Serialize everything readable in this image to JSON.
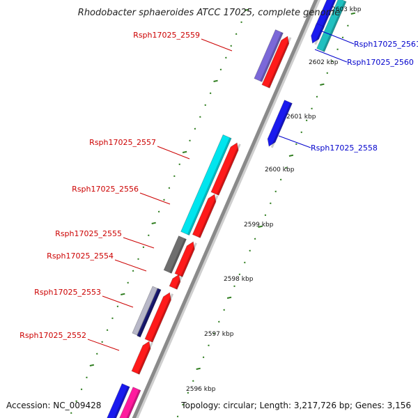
{
  "title": "Rhodobacter sphaeroides ATCC 17025, complete genome",
  "footer": {
    "accession": "Accession: NC_009428",
    "summary": "Topology: circular; Length: 3,217,726 bp; Genes: 3,156"
  },
  "colors": {
    "backbone": "#8a8a8a",
    "tick": "#2e7d1e",
    "left_label": "#cc0000",
    "right_label": "#0000cc",
    "red_gene": "#ff1a1a",
    "blue_gene": "#1a1aee",
    "cyan_gene": "#00e5ee",
    "teal_gene": "#20c0c0",
    "purple_gene": "#7b68d8",
    "gray_gene": "#6e6e6e",
    "magenta_gene": "#ff1a9e"
  },
  "scale_labels": [
    "2602 kbp",
    "2601 kbp",
    "2600 kbp",
    "2599 kbp",
    "2598 kbp",
    "2597 kbp",
    "2596 kbp"
  ],
  "partial_scale_label": "2603 kbp",
  "left_genes": [
    "Rsph17025_2559",
    "Rsph17025_2557",
    "Rsph17025_2556",
    "Rsph17025_2555",
    "Rsph17025_2554",
    "Rsph17025_2553",
    "Rsph17025_2552"
  ],
  "right_genes": [
    "Rsph17025_2561",
    "Rsph17025_2560",
    "Rsph17025_2558"
  ]
}
